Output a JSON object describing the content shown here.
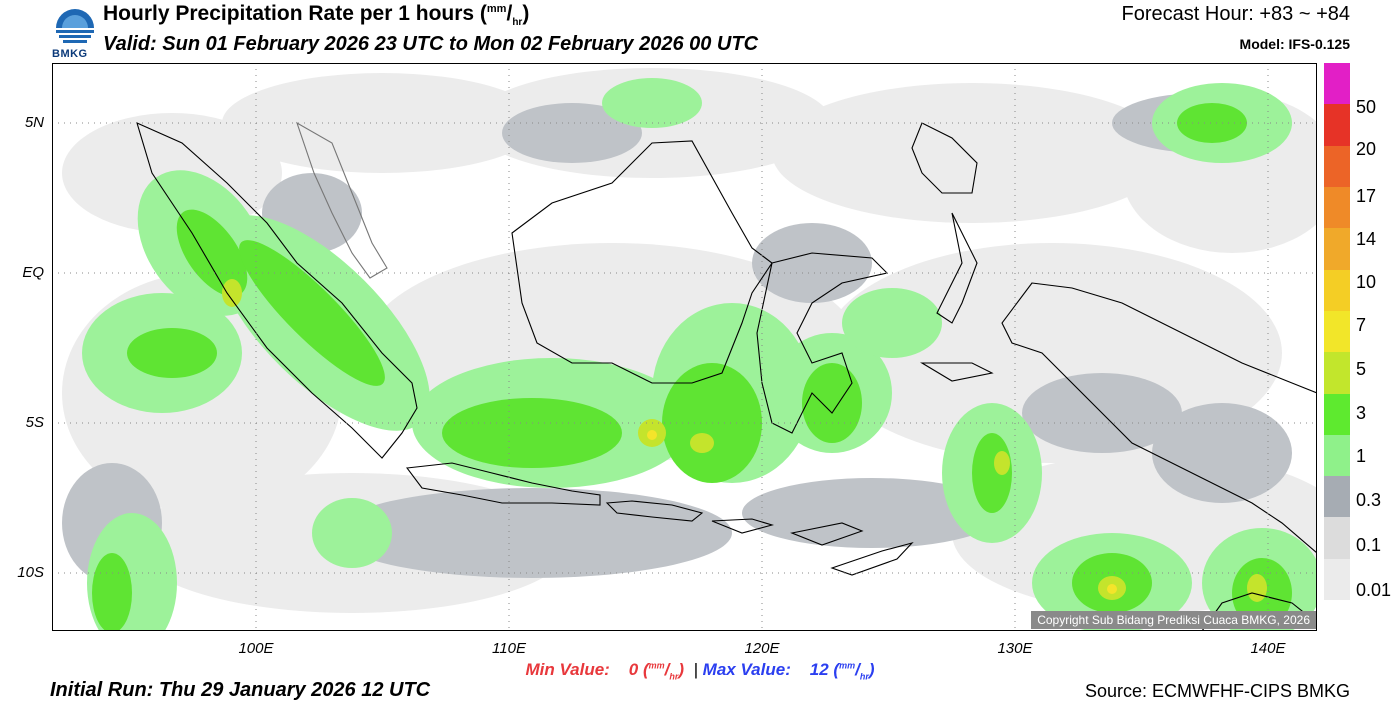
{
  "header": {
    "title_text": "Hourly Precipitation Rate per 1 hours (",
    "title_unit_num": "mm",
    "title_unit_den": "hr",
    "title_end": ")",
    "valid": "Valid: Sun 01 February 2026 23 UTC to Mon 02 February 2026 00 UTC",
    "forecast_hour": "Forecast Hour: +83 ~ +84",
    "model": "Model: IFS-0.125",
    "logo_text": "BMKG"
  },
  "map": {
    "lat_labels": [
      "5N",
      "EQ",
      "5S",
      "10S"
    ],
    "lon_labels": [
      "100E",
      "110E",
      "120E",
      "130E",
      "140E"
    ],
    "copyright": "Copyright Sub Bidang Prediksi Cuaca BMKG, 2026"
  },
  "legend": {
    "labels": [
      "50",
      "20",
      "17",
      "14",
      "10",
      "7",
      "5",
      "3",
      "1",
      "0.3",
      "0.1",
      "0.01"
    ],
    "colors": [
      "#e21fc6",
      "#e63327",
      "#ec6427",
      "#ef8a28",
      "#f0a92a",
      "#f4ce25",
      "#f2e629",
      "#c2e62c",
      "#5eea2f",
      "#8ff18a",
      "#a6acb3",
      "#dcdcdc",
      "#ebebeb"
    ]
  },
  "footer": {
    "min_label": "Min Value:",
    "min_value": "0",
    "unit_num": "mm",
    "unit_den": "hr",
    "separator": "|",
    "max_label": "Max Value:",
    "max_value": "12",
    "initial_run": "Initial Run: Thu 29 January 2026 12 UTC",
    "source": "Source: ECMWFHF-CIPS BMKG"
  }
}
